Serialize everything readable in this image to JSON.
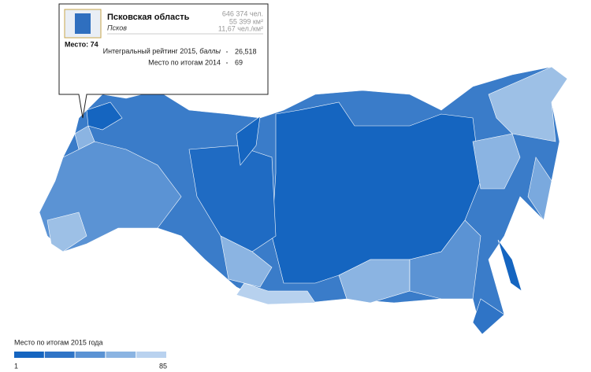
{
  "tooltip": {
    "region": "Псковская область",
    "city": "Псков",
    "stats": [
      "646 374 чел.",
      "55 399 км²",
      "11,67 чел./км²"
    ],
    "place": "Место: 74",
    "rows": [
      {
        "label": "Интегральный рейтинг 2015,",
        "unit": "баллы",
        "value": "26,518"
      },
      {
        "label": "Место по итогам 2014",
        "value": "69"
      }
    ]
  },
  "legend": {
    "title": "Место по итогам 2015 года",
    "min": 1,
    "max": 85,
    "colors": [
      "#1565c0",
      "#2f74c6",
      "#5b93d4",
      "#8bb4e2",
      "#b9d2ef"
    ]
  }
}
